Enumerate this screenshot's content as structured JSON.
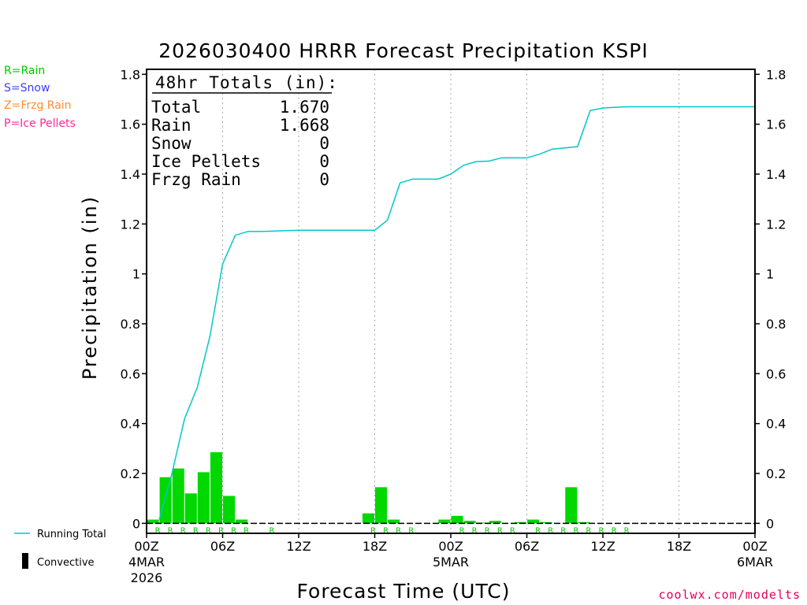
{
  "chart_data": {
    "type": "bar",
    "title": "2026030400 HRRR Forecast Precipitation KSPI",
    "ylabel": "Precipitation (in)",
    "xlabel": "Forecast Time (UTC)",
    "ylim": [
      -0.04,
      1.82
    ],
    "xlim_hours": [
      0,
      48
    ],
    "yticks": [
      0,
      0.2,
      0.4,
      0.6,
      0.8,
      1,
      1.2,
      1.4,
      1.6,
      1.8
    ],
    "ytick_labels": [
      "0",
      "0.2",
      "0.4",
      "0.6",
      "0.8",
      "1",
      "1.2",
      "1.4",
      "1.6",
      "1.8"
    ],
    "xticks": [
      {
        "hour": 0,
        "label": "00Z",
        "sub": "4MAR",
        "sub2": "2026"
      },
      {
        "hour": 6,
        "label": "06Z",
        "sub": "",
        "sub2": ""
      },
      {
        "hour": 12,
        "label": "12Z",
        "sub": "",
        "sub2": ""
      },
      {
        "hour": 18,
        "label": "18Z",
        "sub": "",
        "sub2": ""
      },
      {
        "hour": 24,
        "label": "00Z",
        "sub": "5MAR",
        "sub2": ""
      },
      {
        "hour": 30,
        "label": "06Z",
        "sub": "",
        "sub2": ""
      },
      {
        "hour": 36,
        "label": "12Z",
        "sub": "",
        "sub2": ""
      },
      {
        "hour": 42,
        "label": "18Z",
        "sub": "",
        "sub2": ""
      },
      {
        "hour": 48,
        "label": "00Z",
        "sub": "6MAR",
        "sub2": ""
      }
    ],
    "hourly_precip": {
      "hours": [
        1,
        2,
        3,
        4,
        5,
        6,
        7,
        8,
        18,
        19,
        20,
        24,
        25,
        26,
        27,
        28,
        30,
        31,
        32,
        34,
        35
      ],
      "values": [
        0.015,
        0.185,
        0.22,
        0.12,
        0.205,
        0.285,
        0.11,
        0.015,
        0.04,
        0.145,
        0.015,
        0.015,
        0.03,
        0.01,
        0.003,
        0.01,
        0.005,
        0.015,
        0.005,
        0.145,
        0.005
      ]
    },
    "running_total": {
      "name": "Running Total",
      "hours": [
        1,
        2,
        3,
        4,
        5,
        6,
        7,
        8,
        9,
        12,
        18,
        19,
        20,
        21,
        22,
        23,
        24,
        25,
        26,
        27,
        28,
        29,
        30,
        31,
        32,
        33,
        34,
        35,
        36,
        37,
        38,
        48
      ],
      "values": [
        0.015,
        0.2,
        0.42,
        0.545,
        0.75,
        1.04,
        1.155,
        1.17,
        1.17,
        1.175,
        1.175,
        1.215,
        1.365,
        1.38,
        1.38,
        1.38,
        1.4,
        1.435,
        1.45,
        1.452,
        1.465,
        1.465,
        1.465,
        1.48,
        1.5,
        1.505,
        1.51,
        1.655,
        1.665,
        1.668,
        1.67,
        1.67
      ]
    },
    "precip_type_labels": {
      "symbol": "R",
      "hours": [
        1,
        2,
        3,
        4,
        5,
        6,
        7,
        8,
        10,
        18,
        19,
        20,
        21,
        25,
        26,
        27,
        28,
        29,
        31,
        32,
        33,
        34,
        35,
        36,
        37,
        38
      ]
    },
    "colors": {
      "bars": "#00d800",
      "running_total": "#00c8c8",
      "rain_label": "#00c800",
      "grid": "#aaaaaa"
    }
  },
  "totals_box": {
    "header": "48hr Totals (in):",
    "rows": [
      {
        "label": "Total",
        "value": "1.670"
      },
      {
        "label": "Rain",
        "value": "1.668"
      },
      {
        "label": "Snow",
        "value": "0"
      },
      {
        "label": "Ice Pellets",
        "value": "0"
      },
      {
        "label": "Frzg Rain",
        "value": "0"
      }
    ]
  },
  "type_legend": [
    {
      "text": "R=Rain",
      "color": "#00c800"
    },
    {
      "text": "S=Snow",
      "color": "#3c3cff"
    },
    {
      "text": "Z=Frzg Rain",
      "color": "#ff8c32"
    },
    {
      "text": "P=Ice Pellets",
      "color": "#ff2896"
    }
  ],
  "series_legend": {
    "running_total": "Running Total",
    "convective": "Convective"
  },
  "credit": "coolwx.com/modelts"
}
